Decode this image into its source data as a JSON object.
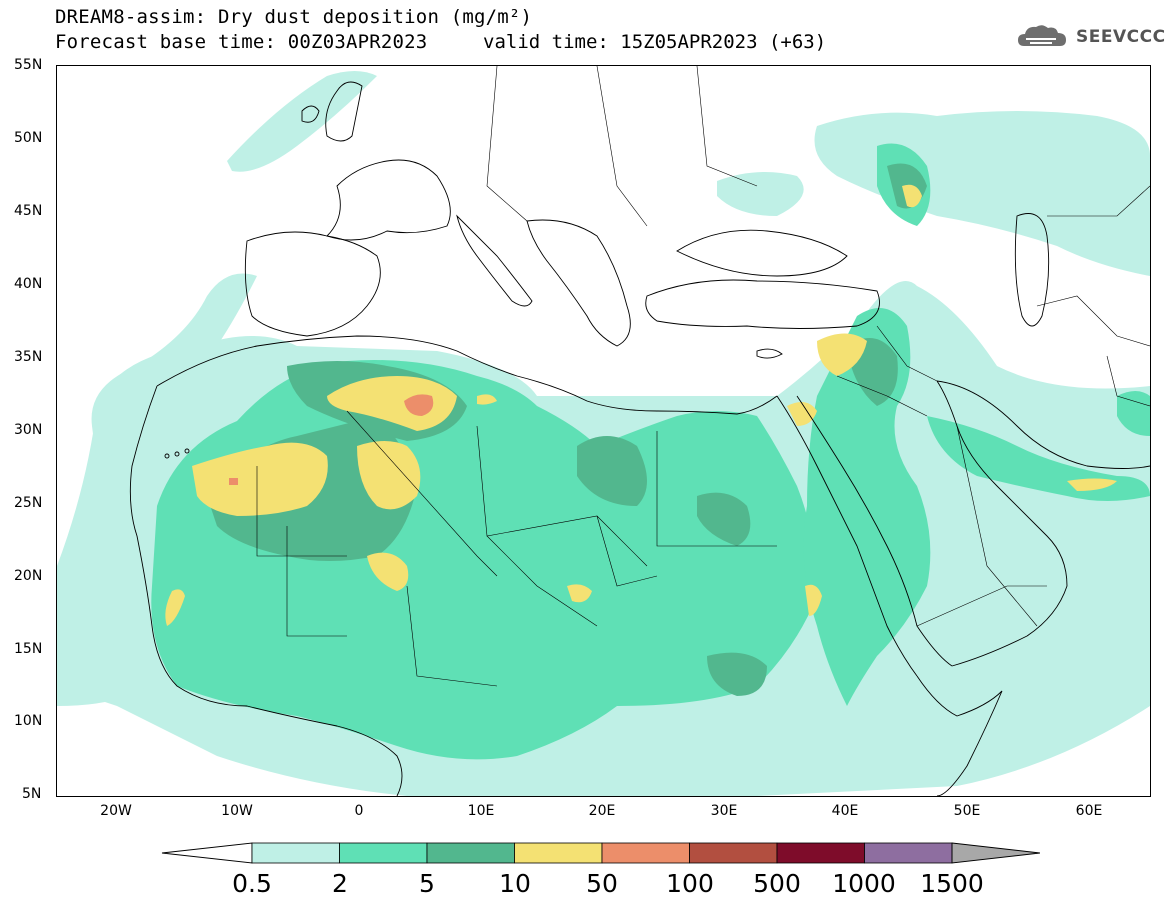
{
  "title": {
    "line1": "DREAM8-assim: Dry dust deposition (mg/m²)",
    "line2": "Forecast base time: 00Z03APR2023",
    "valid": "valid time: 15Z05APR2023 (+63)"
  },
  "logo": {
    "text": "SEEVCCC",
    "icon": "cloud-logo-icon"
  },
  "axes": {
    "lat_labels": [
      "55N",
      "50N",
      "45N",
      "40N",
      "35N",
      "30N",
      "25N",
      "20N",
      "15N",
      "10N",
      "5N"
    ],
    "lon_labels": [
      "20W",
      "10W",
      "0",
      "10E",
      "20E",
      "30E",
      "40E",
      "50E",
      "60E"
    ]
  },
  "colorbar": {
    "labels": [
      "0.5",
      "2",
      "5",
      "10",
      "50",
      "100",
      "500",
      "1000",
      "1500"
    ],
    "colors": [
      "#ffffff",
      "#bff0e6",
      "#5fe0b5",
      "#52b78e",
      "#f4e173",
      "#ec8e6a",
      "#b24f40",
      "#7e0c2a",
      "#8e6ea0",
      "#a8a8a8"
    ]
  }
}
